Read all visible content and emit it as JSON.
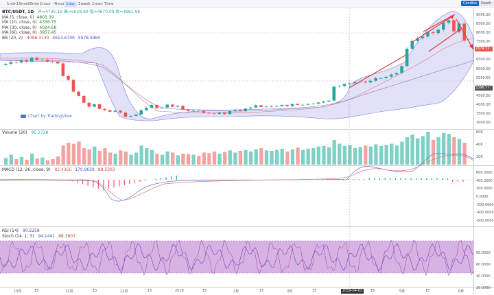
{
  "toolbar": {
    "timeframes": [
      "1min",
      "15min",
      "30min",
      "1hour",
      "4hour",
      "1day",
      "1week",
      "1mon"
    ],
    "active_index": 5,
    "time_button": "Time",
    "right_buttons": [
      "Candles",
      "Depth"
    ]
  },
  "legend": {
    "symbol": "BTC/USDT, 1D",
    "ohlc": "开=4735.16  高=5028.60  低=4670.00  收=4961.96",
    "ma_rows": [
      {
        "label": "MA (5, close, 0)",
        "value": "4803.39",
        "color": "#2a7d2e"
      },
      {
        "label": "MA (10, close, 0)",
        "value": "4336.75",
        "color": "#2a7d2e"
      },
      {
        "label": "MA (30, close, 0)",
        "value": "4024.68",
        "color": "#2a7d2e"
      },
      {
        "label": "MA (60, close, 0)",
        "value": "3957.45",
        "color": "#2a7d2e"
      }
    ],
    "bb": {
      "label": "BB (20, 2)",
      "values": [
        "4096.3130",
        "4613.6700",
        "5578.5960"
      ]
    }
  },
  "watermark": "Chart by TradingView",
  "price_axis": [
    "9000.00",
    "8500.00",
    "8000.00",
    "7500.00",
    "7000.00",
    "6500.00",
    "6000.00",
    "5500.00",
    "5000.00",
    "4500.00",
    "4000.00",
    "3500.00",
    "3000.00"
  ],
  "price_tags": [
    {
      "text": "7674.52",
      "value": 7674.52,
      "color": "#ef5350"
    },
    {
      "text": "5396.77",
      "value": 5396.77,
      "color": "#555555"
    }
  ],
  "volume_pane": {
    "label": "Volume (20)",
    "value": "95.2728",
    "axis": [
      "60K",
      "40K",
      "20K"
    ]
  },
  "macd_pane": {
    "label": "MACD (12, 26, close, 9)",
    "values": [
      "82.4356",
      "170.9659",
      "88.5303"
    ],
    "axis": [
      "600.0000",
      "400.0000",
      "200.0000",
      "0.0000",
      "-200.0000",
      "-400.0000",
      "-600.0000"
    ]
  },
  "rsi_pane": {
    "labels": [
      "RSI (14)",
      "Stoch (14, 1, 3)"
    ],
    "rsi_value": "90.2258",
    "stoch_values": [
      "94.1441",
      "88.3607"
    ],
    "axis": [
      "80.0000",
      "60.0000",
      "40.0000",
      "20.0000"
    ]
  },
  "x_axis": [
    "10月",
    "15",
    "11月",
    "15",
    "12月",
    "15",
    "2019",
    "15",
    "2月",
    "15",
    "3月",
    "15",
    "4月",
    "15",
    "5月",
    "15",
    "6月"
  ],
  "cursor_date": "2019-04-03",
  "colors": {
    "up": "#26a69a",
    "down": "#ef5350",
    "bb_fill": "#c8c8f2",
    "arrow": "#e53935",
    "rsi_band": "#cfa6de"
  },
  "chart_data": {
    "type": "candlestick",
    "title": "BTC/USDT, 1D",
    "ylim": [
      2800,
      9300
    ],
    "closes": [
      6330,
      6430,
      6400,
      6520,
      6450,
      6680,
      6550,
      6570,
      6470,
      6450,
      6350,
      5620,
      5400,
      4720,
      4470,
      4080,
      3850,
      3990,
      3720,
      3650,
      3560,
      3620,
      3510,
      3270,
      3320,
      3400,
      3650,
      3790,
      3950,
      3770,
      3800,
      3970,
      3850,
      3900,
      3680,
      3600,
      3620,
      3610,
      3500,
      3460,
      3430,
      3520,
      3420,
      3600,
      3660,
      3600,
      3740,
      3800,
      3930,
      3830,
      3860,
      3870,
      3890,
      3950,
      3880,
      4000,
      3950,
      3960,
      4000,
      4020,
      4090,
      4150,
      4200,
      5010,
      5040,
      5160,
      5200,
      5270,
      5300,
      5250,
      5350,
      5500,
      5500,
      5580,
      5710,
      5800,
      6200,
      7200,
      7650,
      7800,
      7900,
      8150,
      8100,
      8300,
      8700,
      8850,
      8200,
      8650,
      7674
    ],
    "volume": [
      12,
      18,
      10,
      14,
      9,
      20,
      11,
      13,
      8,
      10,
      15,
      35,
      40,
      38,
      42,
      30,
      28,
      33,
      25,
      30,
      22,
      20,
      26,
      24,
      18,
      22,
      35,
      30,
      27,
      20,
      18,
      24,
      22,
      17,
      20,
      19,
      18,
      16,
      22,
      21,
      24,
      20,
      23,
      26,
      22,
      25,
      27,
      24,
      28,
      30,
      26,
      25,
      27,
      29,
      24,
      28,
      31,
      27,
      29,
      30,
      33,
      34,
      32,
      45,
      38,
      34,
      36,
      30,
      32,
      35,
      33,
      37,
      34,
      36,
      38,
      35,
      42,
      50,
      55,
      48,
      52,
      60,
      45,
      50,
      58,
      56,
      50,
      47,
      40
    ],
    "volume_ylim": [
      0,
      70000
    ]
  }
}
